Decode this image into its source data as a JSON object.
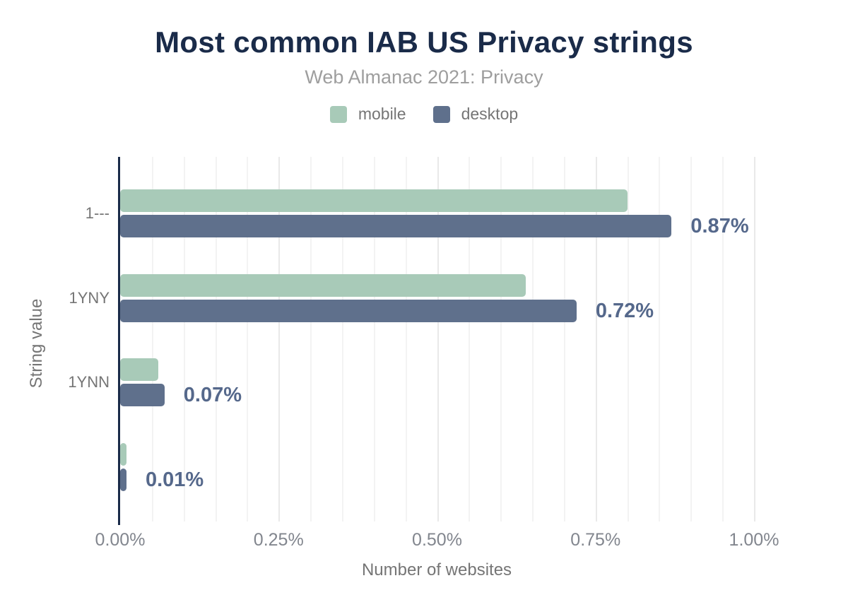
{
  "header": {
    "title": "Most common IAB US Privacy strings",
    "subtitle": "Web Almanac 2021: Privacy"
  },
  "legend": [
    {
      "label": "mobile",
      "color": "#a8cab8"
    },
    {
      "label": "desktop",
      "color": "#5f708c"
    }
  ],
  "chart_data": {
    "type": "bar",
    "orientation": "horizontal",
    "title": "Most common IAB US Privacy strings",
    "subtitle": "Web Almanac 2021: Privacy",
    "ylabel": "String value",
    "xlabel": "Number of websites",
    "categories": [
      "1---",
      "1YNY",
      "1YNN",
      ""
    ],
    "series": [
      {
        "name": "mobile",
        "color": "#a8cab8",
        "values": [
          0.8,
          0.64,
          0.06,
          0.01
        ]
      },
      {
        "name": "desktop",
        "color": "#5f708c",
        "values": [
          0.87,
          0.72,
          0.07,
          0.01
        ]
      }
    ],
    "data_labels": [
      "0.87%",
      "0.72%",
      "0.07%",
      "0.01%"
    ],
    "data_labels_on": "desktop",
    "value_unit": "%",
    "x_ticks": [
      "0.00%",
      "0.25%",
      "0.50%",
      "0.75%",
      "1.00%"
    ],
    "x_tick_values": [
      0,
      0.25,
      0.5,
      0.75,
      1.0
    ],
    "xlim": [
      0,
      1.0
    ],
    "grid": true,
    "grid_step": 0.05,
    "grid_major_step": 0.25,
    "legend_position": "top"
  },
  "colors": {
    "title_text": "#1a2b49",
    "subtitle_text": "#9e9e9e",
    "muted_text": "#757575",
    "tick_text": "#82868e",
    "axis_line": "#1a2b49",
    "value_label_text": "#55688b",
    "mobile_series": "#a8cab8",
    "desktop_series": "#5f708c",
    "gridline_minor": "#f3f3f3",
    "gridline_major": "#e9e9e9",
    "background": "#ffffff"
  }
}
